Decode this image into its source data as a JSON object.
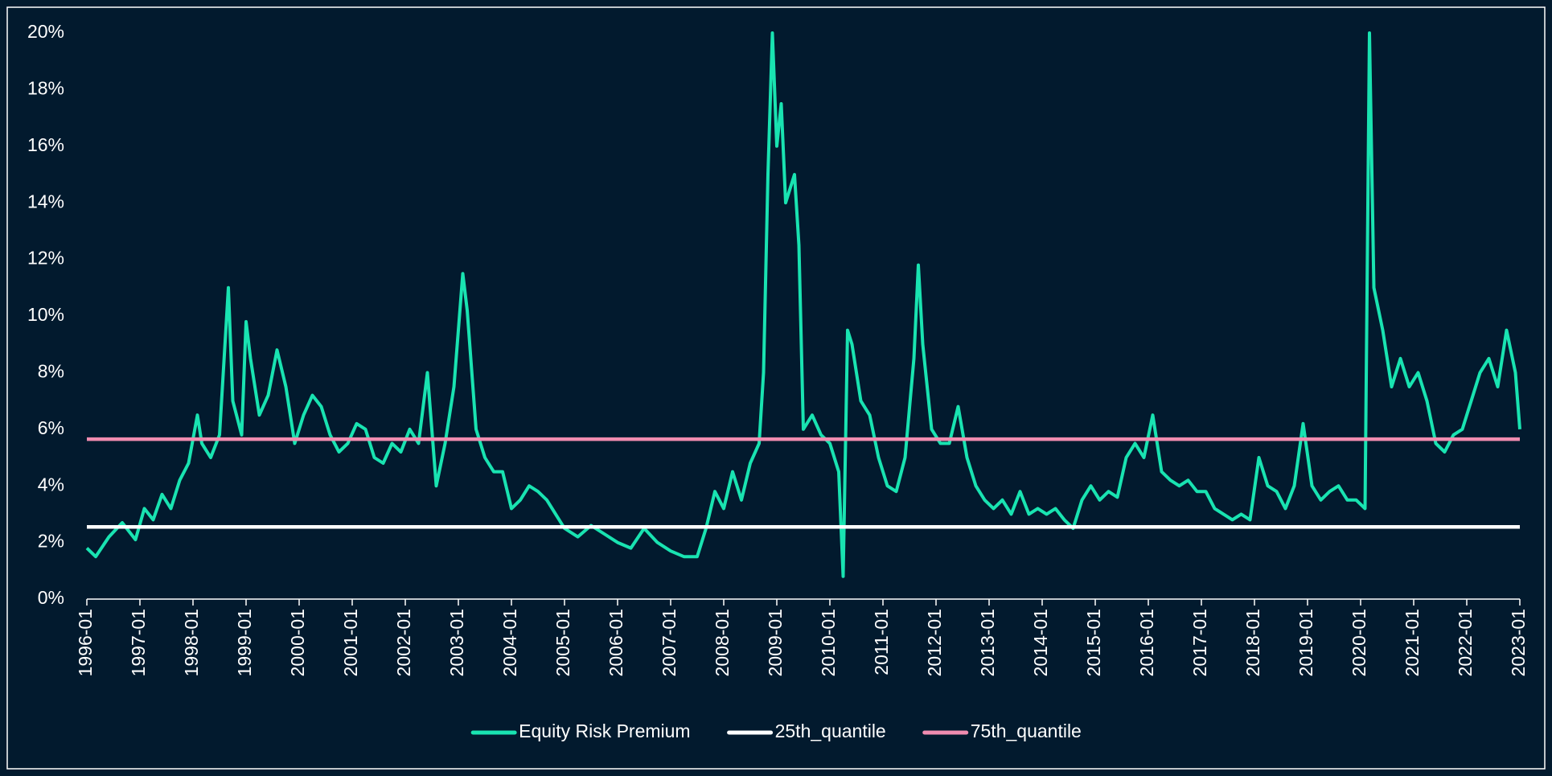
{
  "chart_data": {
    "type": "line",
    "series": [
      {
        "name": "Equity Risk Premium",
        "color": "#19e3b1",
        "x": [
          "1996-01",
          "1996-03",
          "1996-06",
          "1996-09",
          "1996-12",
          "1997-02",
          "1997-04",
          "1997-06",
          "1997-08",
          "1997-10",
          "1997-12",
          "1998-02",
          "1998-03",
          "1998-05",
          "1998-07",
          "1998-09",
          "1998-10",
          "1998-12",
          "1999-01",
          "1999-02",
          "1999-04",
          "1999-06",
          "1999-08",
          "1999-10",
          "1999-12",
          "2000-02",
          "2000-04",
          "2000-06",
          "2000-08",
          "2000-10",
          "2000-12",
          "2001-02",
          "2001-04",
          "2001-06",
          "2001-08",
          "2001-10",
          "2001-12",
          "2002-02",
          "2002-04",
          "2002-06",
          "2002-08",
          "2002-10",
          "2002-12",
          "2003-01",
          "2003-02",
          "2003-03",
          "2003-05",
          "2003-07",
          "2003-09",
          "2003-11",
          "2004-01",
          "2004-03",
          "2004-05",
          "2004-07",
          "2004-09",
          "2004-11",
          "2005-01",
          "2005-04",
          "2005-07",
          "2005-10",
          "2006-01",
          "2006-04",
          "2006-07",
          "2006-10",
          "2007-01",
          "2007-04",
          "2007-07",
          "2007-09",
          "2007-11",
          "2008-01",
          "2008-03",
          "2008-05",
          "2008-07",
          "2008-09",
          "2008-10",
          "2008-11",
          "2008-12",
          "2009-01",
          "2009-02",
          "2009-03",
          "2009-05",
          "2009-06",
          "2009-07",
          "2009-09",
          "2009-11",
          "2010-01",
          "2010-03",
          "2010-04",
          "2010-05",
          "2010-06",
          "2010-08",
          "2010-10",
          "2010-12",
          "2011-02",
          "2011-04",
          "2011-06",
          "2011-08",
          "2011-09",
          "2011-10",
          "2011-12",
          "2012-02",
          "2012-04",
          "2012-06",
          "2012-08",
          "2012-10",
          "2012-12",
          "2013-02",
          "2013-04",
          "2013-06",
          "2013-08",
          "2013-10",
          "2013-12",
          "2014-02",
          "2014-04",
          "2014-06",
          "2014-08",
          "2014-10",
          "2014-12",
          "2015-02",
          "2015-04",
          "2015-06",
          "2015-08",
          "2015-10",
          "2015-12",
          "2016-02",
          "2016-04",
          "2016-06",
          "2016-08",
          "2016-10",
          "2016-12",
          "2017-02",
          "2017-04",
          "2017-06",
          "2017-08",
          "2017-10",
          "2017-12",
          "2018-02",
          "2018-04",
          "2018-06",
          "2018-08",
          "2018-10",
          "2018-12",
          "2019-02",
          "2019-04",
          "2019-06",
          "2019-08",
          "2019-10",
          "2019-12",
          "2020-02",
          "2020-03",
          "2020-04",
          "2020-06",
          "2020-08",
          "2020-10",
          "2020-12",
          "2021-02",
          "2021-04",
          "2021-06",
          "2021-08",
          "2021-10",
          "2021-12",
          "2022-02",
          "2022-04",
          "2022-06",
          "2022-08",
          "2022-10",
          "2022-12",
          "2023-01"
        ],
        "values": [
          1.8,
          1.5,
          2.2,
          2.7,
          2.1,
          3.2,
          2.8,
          3.7,
          3.2,
          4.2,
          4.8,
          6.5,
          5.5,
          5.0,
          5.8,
          11.0,
          7.0,
          5.8,
          9.8,
          8.5,
          6.5,
          7.2,
          8.8,
          7.5,
          5.5,
          6.5,
          7.2,
          6.8,
          5.8,
          5.2,
          5.5,
          6.2,
          6.0,
          5.0,
          4.8,
          5.5,
          5.2,
          6.0,
          5.5,
          8.0,
          4.0,
          5.5,
          7.5,
          9.5,
          11.5,
          10.2,
          6.0,
          5.0,
          4.5,
          4.5,
          3.2,
          3.5,
          4.0,
          3.8,
          3.5,
          3.0,
          2.5,
          2.2,
          2.6,
          2.3,
          2.0,
          1.8,
          2.5,
          2.0,
          1.7,
          1.5,
          1.5,
          2.5,
          3.8,
          3.2,
          4.5,
          3.5,
          4.8,
          5.5,
          8.0,
          15.0,
          20.0,
          16.0,
          17.5,
          14.0,
          15.0,
          12.5,
          6.0,
          6.5,
          5.8,
          5.5,
          4.5,
          0.8,
          9.5,
          9.0,
          7.0,
          6.5,
          5.0,
          4.0,
          3.8,
          5.0,
          8.5,
          11.8,
          9.0,
          6.0,
          5.5,
          5.5,
          6.8,
          5.0,
          4.0,
          3.5,
          3.2,
          3.5,
          3.0,
          3.8,
          3.0,
          3.2,
          3.0,
          3.2,
          2.8,
          2.5,
          3.5,
          4.0,
          3.5,
          3.8,
          3.6,
          5.0,
          5.5,
          5.0,
          6.5,
          4.5,
          4.2,
          4.0,
          4.2,
          3.8,
          3.8,
          3.2,
          3.0,
          2.8,
          3.0,
          2.8,
          5.0,
          4.0,
          3.8,
          3.2,
          4.0,
          6.2,
          4.0,
          3.5,
          3.8,
          4.0,
          3.5,
          3.5,
          3.2,
          20.0,
          11.0,
          9.5,
          7.5,
          8.5,
          7.5,
          8.0,
          7.0,
          5.5,
          5.2,
          5.8,
          6.0,
          7.0,
          8.0,
          8.5,
          7.5,
          9.5,
          8.0,
          6.0
        ]
      },
      {
        "name": "25th_quantile",
        "color": "#ffffff",
        "x": [
          "1996-01",
          "2023-01"
        ],
        "values": [
          2.55,
          2.55
        ]
      },
      {
        "name": "75th_quantile",
        "color": "#f08cb0",
        "x": [
          "1996-01",
          "2023-01"
        ],
        "values": [
          5.65,
          5.65
        ]
      }
    ],
    "xlim": [
      "1996-01",
      "2023-01"
    ],
    "xticks": [
      "1996-01",
      "1997-01",
      "1998-01",
      "1999-01",
      "2000-01",
      "2001-01",
      "2002-01",
      "2003-01",
      "2004-01",
      "2005-01",
      "2006-01",
      "2007-01",
      "2008-01",
      "2009-01",
      "2010-01",
      "2011-01",
      "2012-01",
      "2013-01",
      "2014-01",
      "2015-01",
      "2016-01",
      "2017-01",
      "2018-01",
      "2019-01",
      "2020-01",
      "2021-01",
      "2022-01",
      "2023-01"
    ],
    "ylim": [
      0,
      20
    ],
    "yticks": [
      {
        "value": 0,
        "label": "0%"
      },
      {
        "value": 2,
        "label": "2%"
      },
      {
        "value": 4,
        "label": "4%"
      },
      {
        "value": 6,
        "label": "6%"
      },
      {
        "value": 8,
        "label": "8%"
      },
      {
        "value": 10,
        "label": "10%"
      },
      {
        "value": 12,
        "label": "12%"
      },
      {
        "value": 14,
        "label": "14%"
      },
      {
        "value": 16,
        "label": "16%"
      },
      {
        "value": 18,
        "label": "18%"
      },
      {
        "value": 20,
        "label": "20%"
      }
    ],
    "legend": "bottom"
  }
}
